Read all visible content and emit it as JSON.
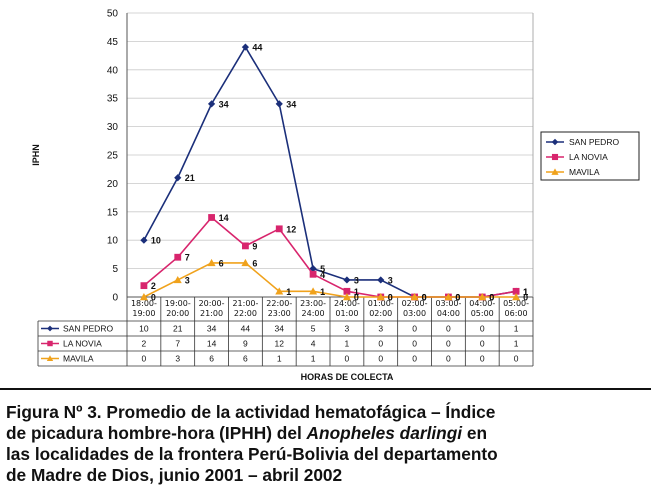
{
  "chart_data": {
    "type": "line",
    "ylabel": "IPHN",
    "xlabel": "HORAS DE COLECTA",
    "ylim": [
      0,
      50
    ],
    "yticks": [
      0,
      5,
      10,
      15,
      20,
      25,
      30,
      35,
      40,
      45,
      50
    ],
    "categories": [
      [
        "18:00-",
        "19:00"
      ],
      [
        "19:00-",
        "20:00"
      ],
      [
        "20:00-",
        "21:00"
      ],
      [
        "21:00-",
        "22:00"
      ],
      [
        "22:00-",
        "23:00"
      ],
      [
        "23:00-",
        "24:00"
      ],
      [
        "24:00-",
        "01:00"
      ],
      [
        "01:00-",
        "02:00"
      ],
      [
        "02:00-",
        "03:00"
      ],
      [
        "03:00-",
        "04:00"
      ],
      [
        "04:00-",
        "05:00"
      ],
      [
        "05:00-",
        "06:00"
      ]
    ],
    "series": [
      {
        "name": "SAN PEDRO",
        "color": "#1b2f7a",
        "marker": "diamond",
        "values": [
          10,
          21,
          34,
          44,
          34,
          5,
          3,
          3,
          0,
          0,
          0,
          1
        ]
      },
      {
        "name": "LA NOVIA",
        "color": "#d8256d",
        "marker": "square",
        "values": [
          2,
          7,
          14,
          9,
          12,
          4,
          1,
          0,
          0,
          0,
          0,
          1
        ]
      },
      {
        "name": "MAVILA",
        "color": "#f0a21c",
        "marker": "triangle",
        "values": [
          0,
          3,
          6,
          6,
          1,
          1,
          0,
          0,
          0,
          0,
          0,
          0
        ]
      }
    ],
    "grid": true,
    "legend_position": "right",
    "data_table": true
  },
  "caption": {
    "line1": "Figura Nº 3. Promedio de la actividad hematofágica – Índice",
    "line2_pre": "de picadura hombre-hora (IPHH) del ",
    "line2_italic": "Anopheles darlingi",
    "line2_post": " en",
    "line3": "las localidades de la frontera Perú-Bolivia del departamento",
    "line4": "de Madre de  Dios, junio 2001 – abril 2002"
  }
}
